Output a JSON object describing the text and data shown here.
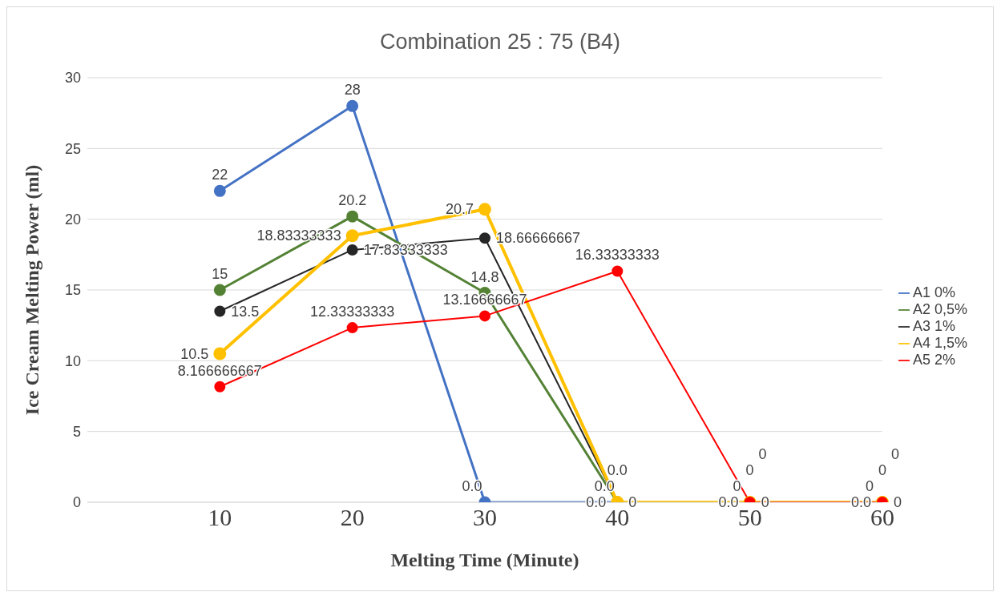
{
  "chart_data": {
    "type": "line",
    "title": "Combination 25 : 75 (B4)",
    "xlabel": "Melting Time (Minute)",
    "ylabel": "Ice Cream Melting Power (ml)",
    "categories": [
      null,
      "10",
      "20",
      "30",
      "40",
      "50",
      "60"
    ],
    "series": [
      {
        "name": "A1 0%",
        "color": "#4472c4",
        "values": [
          null,
          22,
          28,
          0,
          0,
          0,
          0
        ],
        "value_labels": [
          null,
          "22",
          "28",
          "0.0",
          "0.0",
          "0",
          "0"
        ]
      },
      {
        "name": "A2 0,5%",
        "color": "#548235",
        "values": [
          null,
          15,
          20.2,
          14.8,
          0,
          0,
          0
        ],
        "value_labels": [
          null,
          "15",
          "20.2",
          "14.8",
          "0.0",
          "0",
          "0"
        ]
      },
      {
        "name": "A3 1%",
        "color": "#262626",
        "values": [
          null,
          13.5,
          17.83333333,
          18.66666667,
          0,
          0,
          0
        ],
        "value_labels": [
          null,
          "13.5",
          "17.83333333",
          "18.66666667",
          "0",
          "0",
          "0"
        ]
      },
      {
        "name": "A4 1,5%",
        "color": "#ffc000",
        "values": [
          null,
          10.5,
          18.83333333,
          20.7,
          0,
          0,
          0
        ],
        "value_labels": [
          null,
          "10.5",
          "18.83333333",
          "20.7",
          "0.0",
          "0.0",
          "0.0"
        ]
      },
      {
        "name": "A5 2%",
        "color": "#ff0000",
        "values": [
          null,
          8.166666667,
          12.33333333,
          13.16666667,
          16.33333333,
          0,
          0
        ],
        "value_labels": [
          null,
          "8.166666667",
          "12.33333333",
          "13.16666667",
          "16.33333333",
          "0",
          "0"
        ]
      }
    ],
    "ylim": [
      0,
      30
    ],
    "yticks": [
      0,
      5,
      10,
      15,
      20,
      25,
      30
    ],
    "grid": "y",
    "legend": "right",
    "marker": "circle",
    "line_style": "solid"
  }
}
